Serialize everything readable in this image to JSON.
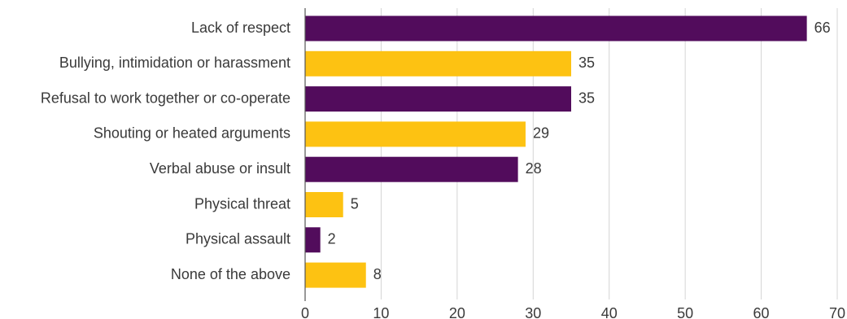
{
  "chart_data": {
    "type": "bar",
    "orientation": "horizontal",
    "categories": [
      "Lack of respect",
      "Bullying, intimidation or harassment",
      "Refusal to work together or co-operate",
      "Shouting or heated arguments",
      "Verbal abuse or insult",
      "Physical threat",
      "Physical assault",
      "None of the above"
    ],
    "values": [
      66,
      35,
      35,
      29,
      28,
      5,
      2,
      8
    ],
    "value_labels": [
      "66",
      "35",
      "35",
      "29",
      "28",
      "5",
      "2",
      "8"
    ],
    "bar_colors": [
      "#520c5c",
      "#fdc212",
      "#520c5c",
      "#fdc212",
      "#520c5c",
      "#fdc212",
      "#520c5c",
      "#fdc212"
    ],
    "xlim": [
      0,
      70
    ],
    "xticks": [
      0,
      10,
      20,
      30,
      40,
      50,
      60,
      70
    ],
    "xtick_labels": [
      "0",
      "10",
      "20",
      "30",
      "40",
      "50",
      "60",
      "70"
    ],
    "grid": true,
    "legend": "none",
    "title": "",
    "xlabel": "",
    "ylabel": ""
  }
}
